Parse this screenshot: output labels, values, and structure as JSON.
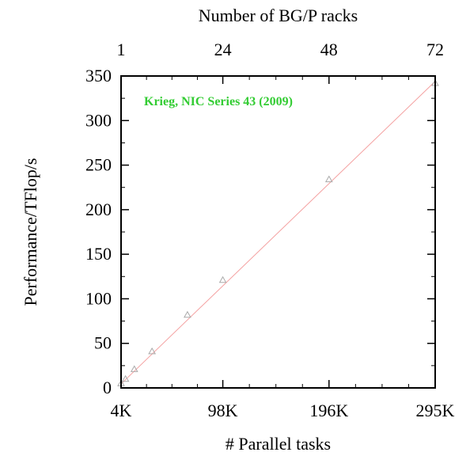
{
  "chart_data": {
    "type": "line",
    "title": "",
    "xlabel": "# Parallel tasks",
    "ylabel": "Performance/TFlop/s",
    "x2label": "Number of BG/P racks",
    "xlim": [
      4096,
      294912
    ],
    "ylim": [
      0,
      350
    ],
    "x_ticks": [
      {
        "value": 4096,
        "label": "4K"
      },
      {
        "value": 98304,
        "label": "98K"
      },
      {
        "value": 196608,
        "label": "196K"
      },
      {
        "value": 294912,
        "label": "295K"
      }
    ],
    "x2_ticks": [
      {
        "value": 1,
        "label": "1"
      },
      {
        "value": 24,
        "label": "24"
      },
      {
        "value": 48,
        "label": "48"
      },
      {
        "value": 72,
        "label": "72"
      }
    ],
    "y_ticks": [
      0,
      50,
      100,
      150,
      200,
      250,
      300,
      350
    ],
    "series": [
      {
        "x": [
          4096,
          8192,
          16384,
          32768,
          65536,
          98304,
          196608,
          294912
        ],
        "y": [
          5,
          10,
          21,
          41,
          82,
          121,
          234,
          342
        ],
        "color": "#aaaaaa",
        "marker": "triangle"
      }
    ],
    "ideal_line": {
      "x": [
        4096,
        294912
      ],
      "y": [
        4.5,
        344
      ],
      "color": "#f4a0a0"
    },
    "annotation": {
      "text": "Krieg, NIC Series 43 (2009)",
      "color": "#33cc33",
      "placement": "top-left"
    },
    "grid": false
  }
}
